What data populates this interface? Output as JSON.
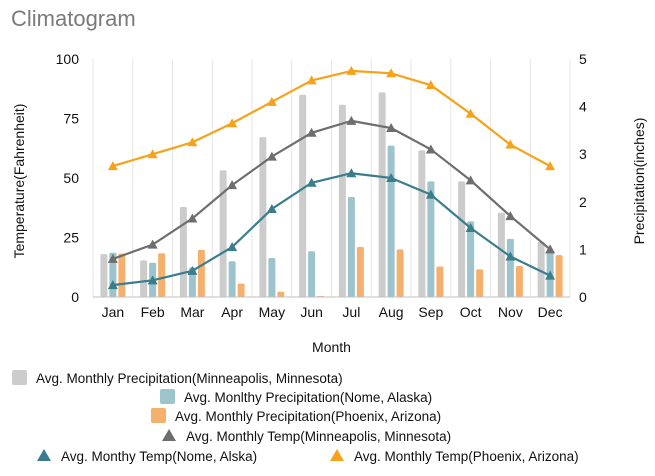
{
  "chart_data": {
    "type": "bar+line",
    "title": "Climatogram",
    "xlabel": "Month",
    "ylabel_left": "Temperature(Fahrenheit)",
    "ylabel_right": "Precipitation(inches)",
    "ylim_left": [
      0,
      100
    ],
    "ylim_right": [
      0,
      5
    ],
    "yticks_left": [
      0,
      25,
      50,
      75,
      100
    ],
    "yticks_right": [
      0,
      1,
      2,
      3,
      4,
      5
    ],
    "grid": "vertical",
    "categories": [
      "Jan",
      "Feb",
      "Mar",
      "Apr",
      "May",
      "Jun",
      "Jul",
      "Aug",
      "Sep",
      "Oct",
      "Nov",
      "Dec"
    ],
    "bar_series": [
      {
        "name": "Avg. Monthly Precipitation(Minneapolis, Minnesota)",
        "axis": "right",
        "color": "#cccccc",
        "values": [
          0.9,
          0.77,
          1.89,
          2.66,
          3.36,
          4.25,
          4.04,
          4.3,
          3.08,
          2.43,
          1.77,
          1.16
        ]
      },
      {
        "name": "Avg. Monlthy Precipitation(Nome, Alaska)",
        "axis": "right",
        "color": "#9dc3cc",
        "values": [
          0.93,
          0.72,
          0.62,
          0.75,
          0.82,
          0.96,
          2.1,
          3.18,
          2.43,
          1.59,
          1.22,
          0.97
        ]
      },
      {
        "name": "Avg. Monthly Precipitation(Phoenix, Arizona)",
        "axis": "right",
        "color": "#f5b06e",
        "values": [
          0.91,
          0.92,
          0.99,
          0.28,
          0.11,
          0.02,
          1.05,
          1.0,
          0.64,
          0.58,
          0.65,
          0.88
        ]
      }
    ],
    "line_series": [
      {
        "name": "Avg. Monthly Temp(Minneapolis, Minnesota)",
        "axis": "left",
        "color": "#6e6e6e",
        "values": [
          16,
          22,
          33,
          47,
          59,
          69,
          74,
          71,
          62,
          49,
          34,
          20
        ]
      },
      {
        "name": "Avg. Monthy Temp(Nome, Alska)",
        "axis": "left",
        "color": "#3a7d8c",
        "values": [
          5,
          7,
          11,
          21,
          37,
          48,
          52,
          50,
          43,
          29,
          17,
          9
        ]
      },
      {
        "name": "Avg. Monthly Temp(Phoenix, Arizona)",
        "axis": "left",
        "color": "#f7a21b",
        "values": [
          55,
          60,
          65,
          73,
          82,
          91,
          95,
          94,
          89,
          77,
          64,
          55
        ]
      }
    ]
  }
}
